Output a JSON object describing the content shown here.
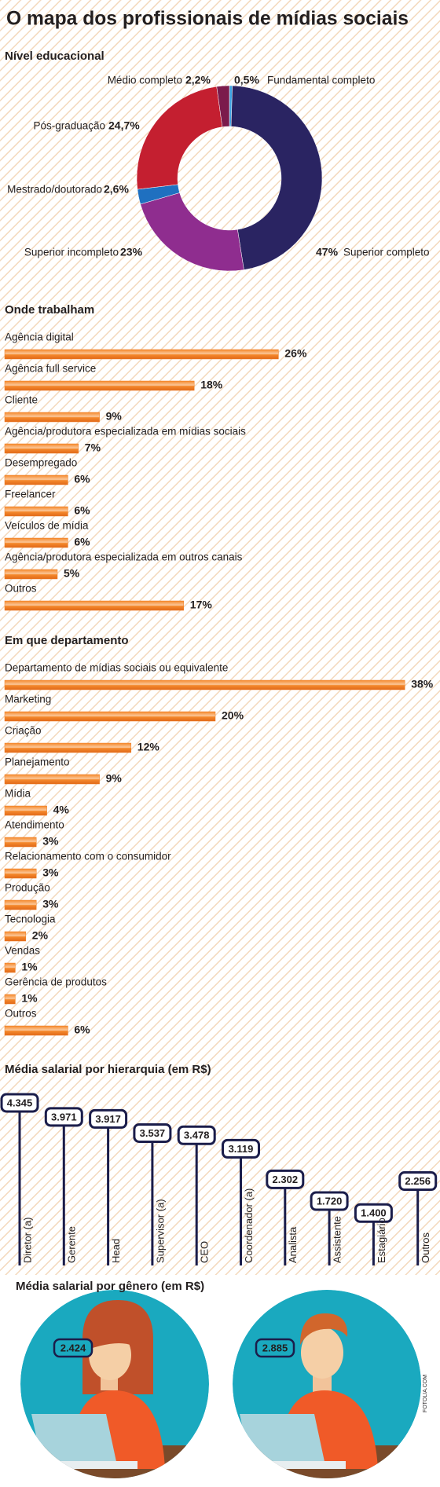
{
  "title": "O mapa dos profissionais de mídias sociais",
  "credit": "FOTOLIA.COM",
  "chart_data": [
    {
      "type": "pie",
      "title": "Nível educacional",
      "categories": [
        "Fundamental completo",
        "Superior completo",
        "Superior incompleto",
        "Mestrado/doutorado",
        "Pós-graduação",
        "Médio completo"
      ],
      "values": [
        0.5,
        47,
        23,
        2.6,
        24.7,
        2.2
      ],
      "value_labels": [
        "0,5%",
        "47%",
        "23%",
        "2,6%",
        "24,7%",
        "2,2%"
      ],
      "colors": [
        "#3aa3e3",
        "#2a2462",
        "#8f2d8f",
        "#1f70c0",
        "#c41f30",
        "#7b1b4c"
      ]
    },
    {
      "type": "hbar",
      "title": "Onde trabalham",
      "categories": [
        "Agência digital",
        "Agência full service",
        "Cliente",
        "Agência/produtora especializada em mídias sociais",
        "Desempregado",
        "Freelancer",
        "Veículos de mídia",
        "Agência/produtora especializada em outros canais",
        "Outros"
      ],
      "values": [
        26,
        18,
        9,
        7,
        6,
        6,
        6,
        5,
        17
      ],
      "value_labels": [
        "26%",
        "18%",
        "9%",
        "7%",
        "6%",
        "6%",
        "6%",
        "5%",
        "17%"
      ],
      "color": "#f07d22"
    },
    {
      "type": "hbar",
      "title": "Em que departamento",
      "categories": [
        "Departamento de mídias sociais ou equivalente",
        "Marketing",
        "Criação",
        "Planejamento",
        "Mídia",
        "Atendimento",
        "Relacionamento com o consumidor",
        "Produção",
        "Tecnologia",
        "Vendas",
        "Gerência de produtos",
        "Outros"
      ],
      "values": [
        38,
        20,
        12,
        9,
        4,
        3,
        3,
        3,
        2,
        1,
        1,
        6
      ],
      "value_labels": [
        "38%",
        "20%",
        "12%",
        "9%",
        "4%",
        "3%",
        "3%",
        "3%",
        "2%",
        "1%",
        "1%",
        "6%"
      ],
      "color": "#f07d22"
    },
    {
      "type": "lollipop",
      "title": "Média salarial por hierarquia (em R$)",
      "categories": [
        "Diretor (a)",
        "Gerente",
        "Head",
        "Supervisor (a)",
        "CEO",
        "Coordenador (a)",
        "Analista",
        "Assistente",
        "Estagiário",
        "Outros"
      ],
      "values": [
        4345,
        3971,
        3917,
        3537,
        3478,
        3119,
        2302,
        1720,
        1400,
        2256
      ],
      "value_labels": [
        "4.345",
        "3.971",
        "3.917",
        "3.537",
        "3.478",
        "3.119",
        "2.302",
        "1.720",
        "1.400",
        "2.256"
      ],
      "color": "#1b1d4a"
    },
    {
      "type": "pictogram",
      "title": "Média salarial por gênero (em R$)",
      "values": [
        2424,
        2885
      ],
      "value_labels": [
        "2.424",
        "2.885"
      ],
      "color": "#1aa9bf"
    }
  ]
}
